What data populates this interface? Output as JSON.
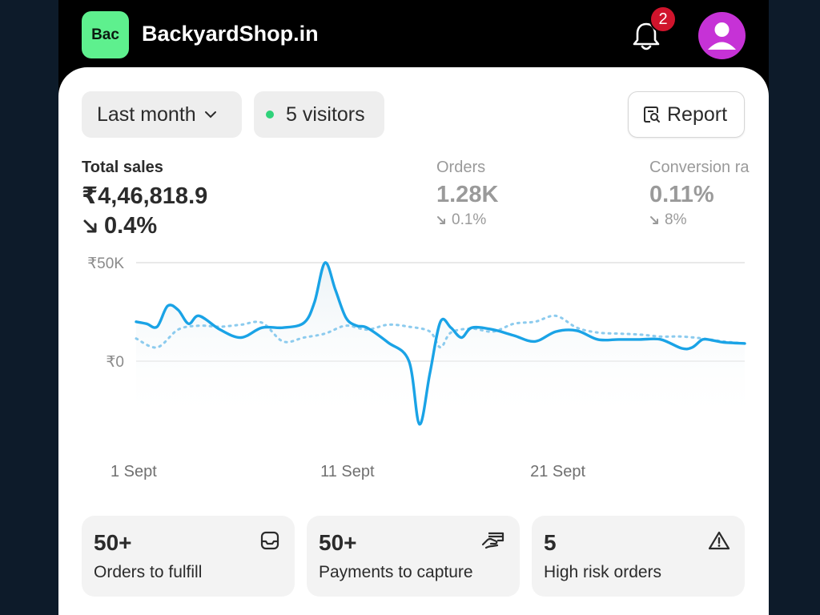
{
  "header": {
    "logo_text": "Bac",
    "shop_name": "BackyardShop.in",
    "notification_count": "2",
    "icons": [
      "bell-icon",
      "user-avatar-icon"
    ]
  },
  "filters": {
    "period_label": "Last month",
    "visitors_label": "5 visitors",
    "report_label": "Report"
  },
  "metrics": [
    {
      "label": "Total sales",
      "value": "₹4,46,818.9",
      "change": "0.4%",
      "direction": "down"
    },
    {
      "label": "Orders",
      "value": "1.28K",
      "change": "0.1%",
      "direction": "down"
    },
    {
      "label": "Conversion ra",
      "value": "0.11%",
      "change": "8%",
      "direction": "down"
    }
  ],
  "colors": {
    "accent": "#1aa3e6",
    "logo_bg": "#5ef08e",
    "badge": "#d0142c",
    "avatar_bg": "#c632d6",
    "visitor_dot": "#2fd27a"
  },
  "chart_data": {
    "type": "line",
    "y_tick_labels": [
      "₹50K",
      "₹0"
    ],
    "x_tick_labels": [
      "1 Sept",
      "11 Sept",
      "21 Sept"
    ],
    "x_tick_days": [
      1,
      11,
      21
    ],
    "ylim": [
      -33000,
      50000
    ],
    "grid": true,
    "series": [
      {
        "style": "solid",
        "x": [
          1,
          1.5,
          2,
          2.5,
          3,
          3.5,
          4,
          5,
          6,
          7,
          8,
          9,
          9.5,
          10,
          10.5,
          11,
          11.5,
          12,
          13,
          14,
          14.5,
          15,
          15.5,
          16,
          16.5,
          17,
          18,
          19,
          20,
          21,
          22,
          23,
          24,
          25,
          26,
          27,
          27.5,
          28,
          28.5,
          29,
          30
        ],
        "y": [
          20000,
          19000,
          17500,
          28000,
          26000,
          19000,
          23000,
          16000,
          12000,
          17000,
          17000,
          19500,
          30000,
          50000,
          36000,
          22000,
          18000,
          17000,
          9500,
          0,
          -32000,
          -6000,
          20000,
          17000,
          12000,
          17000,
          16000,
          13000,
          10000,
          15000,
          15500,
          11000,
          11000,
          11000,
          11000,
          6500,
          7000,
          11000,
          10500,
          9500,
          9000
        ]
      },
      {
        "style": "dotted",
        "x": [
          1,
          2,
          3,
          4,
          5,
          6,
          7,
          8,
          9,
          10,
          11,
          12,
          13,
          14,
          15,
          15.5,
          16,
          17,
          18,
          19,
          20,
          21,
          22,
          23,
          24,
          25,
          26,
          27,
          28,
          29,
          30
        ],
        "y": [
          11500,
          7000,
          16000,
          18000,
          17500,
          18500,
          19500,
          10000,
          12000,
          14000,
          18000,
          16000,
          18500,
          17500,
          15000,
          7000,
          14500,
          16500,
          15000,
          19000,
          20000,
          23000,
          17000,
          14500,
          14000,
          13500,
          12500,
          12500,
          11500,
          10000,
          9000
        ]
      }
    ]
  },
  "tiles": [
    {
      "count": "50+",
      "label": "Orders to fulfill",
      "icon": "inbox-icon"
    },
    {
      "count": "50+",
      "label": "Payments to capture",
      "icon": "hand-card-icon"
    },
    {
      "count": "5",
      "label": "High risk orders",
      "icon": "warning-icon"
    }
  ]
}
